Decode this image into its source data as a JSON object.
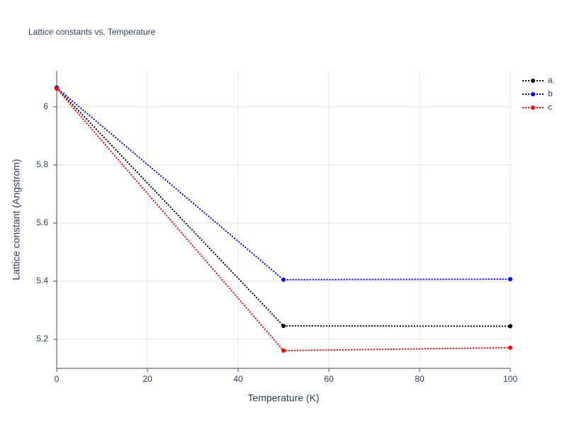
{
  "chart_data": {
    "type": "line",
    "title": "Lattice constants vs. Temperature",
    "x_label": "Temperature (K)",
    "y_label": "Lattice constant (Angstrom)",
    "x": [
      0,
      50,
      100
    ],
    "series": [
      {
        "name": "a",
        "color": "#000000",
        "values": [
          6.066,
          5.246,
          5.245
        ]
      },
      {
        "name": "b",
        "color": "#0000ff",
        "values": [
          6.066,
          5.405,
          5.407
        ]
      },
      {
        "name": "c",
        "color": "#ff0000",
        "values": [
          6.063,
          5.161,
          5.171
        ]
      }
    ],
    "xlim": [
      0,
      100
    ],
    "xticks": [
      0,
      20,
      40,
      60,
      80,
      100
    ],
    "ylim": [
      5.1,
      6.124
    ],
    "yticks": [
      5.2,
      5.4,
      5.6,
      5.8,
      6
    ],
    "grid": true,
    "legend": "top-right"
  }
}
